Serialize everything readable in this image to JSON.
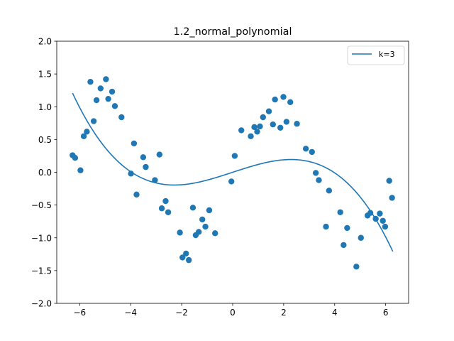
{
  "chart_data": {
    "type": "scatter",
    "title": "1.2_normal_polynomial",
    "xlabel": "",
    "ylabel": "",
    "xlim": [
      -6.9,
      6.9
    ],
    "ylim": [
      -2.0,
      2.0
    ],
    "xticks": [
      -6,
      -4,
      -2,
      0,
      2,
      4,
      6
    ],
    "yticks": [
      -2.0,
      -1.5,
      -1.0,
      -0.5,
      0.0,
      0.5,
      1.0,
      1.5,
      2.0
    ],
    "xtick_labels": [
      "−6",
      "−4",
      "−2",
      "0",
      "2",
      "4",
      "6"
    ],
    "ytick_labels": [
      "−2.0",
      "−1.5",
      "−1.0",
      "−0.5",
      "0.0",
      "0.5",
      "1.0",
      "1.5",
      "2.0"
    ],
    "grid": false,
    "legend": {
      "position": "top-right",
      "entries": [
        "k=3"
      ]
    },
    "color": "#1f77b4",
    "points": {
      "x": [
        -6.28,
        -6.18,
        -5.97,
        -5.84,
        -5.72,
        -5.58,
        -5.45,
        -5.34,
        -5.18,
        -4.97,
        -4.88,
        -4.73,
        -4.62,
        -4.36,
        -3.99,
        -3.87,
        -3.77,
        -3.51,
        -3.41,
        -3.05,
        -2.87,
        -2.78,
        -2.63,
        -2.53,
        -2.07,
        -1.97,
        -1.83,
        -1.72,
        -1.56,
        -1.45,
        -1.33,
        -1.19,
        -1.07,
        -0.92,
        -0.69,
        -0.05,
        0.08,
        0.34,
        0.71,
        0.85,
        0.96,
        1.07,
        1.19,
        1.42,
        1.58,
        1.66,
        1.87,
        1.99,
        2.11,
        2.26,
        2.52,
        2.87,
        3.11,
        3.26,
        3.38,
        3.66,
        3.78,
        4.22,
        4.35,
        4.49,
        4.85,
        5.03,
        5.29,
        5.4,
        5.61,
        5.77,
        5.89,
        5.98,
        6.14,
        6.25
      ],
      "y": [
        0.26,
        0.22,
        0.03,
        0.55,
        0.62,
        1.38,
        0.78,
        1.1,
        1.28,
        1.42,
        1.12,
        1.23,
        1.01,
        0.84,
        -0.02,
        0.44,
        -0.34,
        0.23,
        0.08,
        -0.12,
        0.27,
        -0.55,
        -0.44,
        -0.61,
        -0.92,
        -1.3,
        -1.24,
        -1.34,
        -0.54,
        -0.96,
        -0.91,
        -0.72,
        -0.83,
        -0.58,
        -0.93,
        -0.14,
        0.25,
        0.64,
        0.55,
        0.69,
        0.62,
        0.7,
        0.84,
        0.93,
        0.73,
        1.11,
        0.68,
        1.15,
        0.77,
        1.07,
        0.74,
        0.36,
        0.31,
        -0.01,
        -0.12,
        -0.83,
        -0.28,
        -0.61,
        -1.11,
        -0.85,
        -1.44,
        -1.0,
        -0.66,
        -0.62,
        -0.71,
        -0.63,
        -0.74,
        -0.83,
        -0.13,
        -0.39
      ]
    },
    "series": [
      {
        "name": "k=3",
        "type": "line",
        "coefficients": [
          0.0,
          0.1275,
          0.0,
          -0.00811
        ],
        "x_range": [
          -6.28,
          6.28
        ]
      }
    ]
  }
}
